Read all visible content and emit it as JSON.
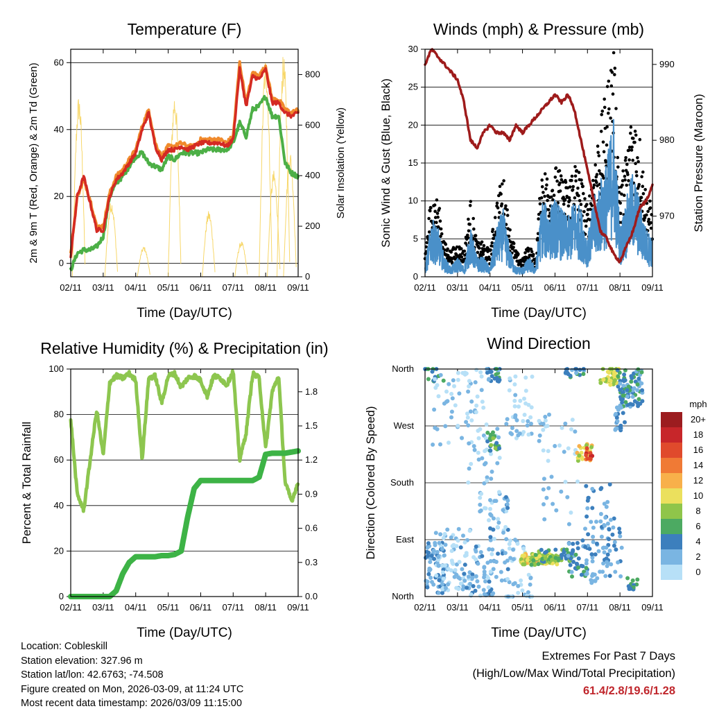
{
  "colors": {
    "temp_2m": "#d42a23",
    "temp_9m": "#f08a2c",
    "dewpoint": "#4caf46",
    "solar": "#f6d35a",
    "gust": "#000000",
    "wind": "#4a90c9",
    "pressure": "#9e1b1b",
    "rh": "#8dc64f",
    "precip": "#3db346"
  },
  "x_ticks": [
    "02/11",
    "03/11",
    "04/11",
    "05/11",
    "06/11",
    "07/11",
    "08/11",
    "09/11"
  ],
  "xlabel": "Time (Day/UTC)",
  "chart_data": [
    {
      "type": "line",
      "title": "Temperature (F)",
      "xlabel": "Time (Day/UTC)",
      "ylabel": "2m & 9m T (Red, Orange) & 2m Td (Green)",
      "y2label": "Solar Insolation (Yellow)",
      "ylim": [
        -4,
        64
      ],
      "y2lim": [
        0,
        900
      ],
      "y_ticks": [
        "0",
        "20",
        "40",
        "60"
      ],
      "y2_ticks": [
        "0",
        "200",
        "400",
        "600",
        "800"
      ],
      "x": [
        0,
        0.2,
        0.4,
        0.6,
        0.8,
        1.0,
        1.2,
        1.4,
        1.6,
        1.8,
        2.0,
        2.2,
        2.4,
        2.6,
        2.8,
        3.0,
        3.2,
        3.4,
        3.6,
        3.8,
        4.0,
        4.2,
        4.4,
        4.6,
        4.8,
        5.0,
        5.2,
        5.4,
        5.6,
        5.8,
        6.0,
        6.2,
        6.4,
        6.6,
        6.8,
        7.0
      ],
      "series": [
        {
          "name": "2m T",
          "values": [
            2,
            20,
            26,
            18,
            10,
            10,
            20,
            25,
            27,
            30,
            33,
            40,
            45,
            35,
            31,
            34,
            34,
            35,
            34,
            35,
            36,
            36,
            36,
            36,
            35,
            37,
            58,
            47,
            56,
            55,
            58,
            48,
            48,
            45,
            44,
            45
          ]
        },
        {
          "name": "9m T",
          "values": [
            3,
            20,
            25,
            19,
            11,
            11,
            21,
            26,
            28,
            31,
            34,
            41,
            46,
            36,
            32,
            35,
            35,
            36,
            35,
            35,
            37,
            37,
            37,
            37,
            36,
            38,
            60,
            48,
            57,
            56,
            59,
            49,
            49,
            46,
            45,
            46
          ]
        },
        {
          "name": "2m Td",
          "values": [
            -2,
            3,
            4,
            4,
            5,
            8,
            20,
            24,
            26,
            29,
            32,
            33,
            30,
            29,
            28,
            32,
            31,
            33,
            33,
            33,
            33,
            34,
            34,
            34,
            34,
            36,
            42,
            38,
            46,
            47,
            50,
            44,
            44,
            30,
            27,
            26
          ]
        },
        {
          "name": "Solar",
          "axis": "right",
          "values": [
            0,
            720,
            0,
            0,
            0,
            0,
            0,
            0,
            0,
            0,
            0,
            0,
            730,
            0,
            0,
            0,
            120,
            0,
            0,
            260,
            0,
            0,
            0,
            0,
            0,
            0,
            870,
            0,
            0,
            0,
            0,
            880,
            0,
            0,
            0,
            0
          ]
        }
      ]
    },
    {
      "type": "line",
      "title": "Winds (mph) & Pressure (mb)",
      "xlabel": "Time (Day/UTC)",
      "ylabel": "Sonic Wind & Gust (Blue, Black)",
      "y2label": "Station Pressure (Maroon)",
      "ylim": [
        0,
        30
      ],
      "y2lim": [
        962,
        992
      ],
      "y_ticks": [
        "0",
        "5",
        "10",
        "15",
        "20",
        "25",
        "30"
      ],
      "y2_ticks": [
        "970",
        "980",
        "990"
      ],
      "x": [
        0,
        0.2,
        0.4,
        0.6,
        0.8,
        1.0,
        1.2,
        1.4,
        1.6,
        1.8,
        2.0,
        2.2,
        2.4,
        2.6,
        2.8,
        3.0,
        3.2,
        3.4,
        3.6,
        3.8,
        4.0,
        4.2,
        4.4,
        4.6,
        4.8,
        5.0,
        5.2,
        5.4,
        5.6,
        5.8,
        6.0,
        6.2,
        6.4,
        6.6,
        6.8,
        7.0
      ],
      "series": [
        {
          "name": "Gust",
          "values": [
            3,
            10,
            9,
            4,
            3,
            4,
            3,
            9,
            4,
            4,
            3,
            9,
            12,
            6,
            3,
            2,
            4,
            2,
            13,
            12,
            13,
            12,
            11,
            14,
            12,
            8,
            14,
            18,
            22,
            28,
            10,
            15,
            20,
            17,
            10,
            8
          ]
        },
        {
          "name": "Wind",
          "values": [
            1,
            6,
            5,
            2,
            1,
            2,
            1,
            5,
            2,
            2,
            1,
            5,
            7,
            3,
            1,
            1,
            2,
            1,
            8,
            7,
            8,
            7,
            6,
            8,
            7,
            4,
            8,
            10,
            12,
            17,
            5,
            8,
            11,
            8,
            5,
            4
          ]
        },
        {
          "name": "Pressure",
          "axis": "right",
          "values": [
            990,
            992,
            991,
            990,
            989,
            988,
            985,
            980,
            979,
            981,
            982,
            981,
            981,
            980,
            982,
            981,
            982,
            983,
            984,
            985,
            986,
            985,
            986,
            984,
            980,
            976,
            972,
            968,
            967,
            965,
            964,
            966,
            968,
            971,
            972,
            974
          ]
        }
      ]
    },
    {
      "type": "line",
      "title": "Relative Humidity (%) & Precipitation (in)",
      "xlabel": "Time (Day/UTC)",
      "ylabel": "Percent & Total Rainfall",
      "ylim": [
        0,
        100
      ],
      "y2lim": [
        0,
        2.0
      ],
      "y_ticks": [
        "0",
        "20",
        "40",
        "60",
        "80",
        "100"
      ],
      "y2_ticks": [
        "0.0",
        "0.3",
        "0.6",
        "0.9",
        "1.2",
        "1.5",
        "1.8"
      ],
      "x": [
        0,
        0.2,
        0.4,
        0.6,
        0.8,
        1.0,
        1.2,
        1.4,
        1.6,
        1.8,
        2.0,
        2.2,
        2.4,
        2.6,
        2.8,
        3.0,
        3.2,
        3.4,
        3.6,
        3.8,
        4.0,
        4.2,
        4.4,
        4.6,
        4.8,
        5.0,
        5.2,
        5.4,
        5.6,
        5.8,
        6.0,
        6.2,
        6.4,
        6.6,
        6.8,
        7.0
      ],
      "series": [
        {
          "name": "RH",
          "values": [
            78,
            45,
            38,
            60,
            82,
            62,
            94,
            97,
            96,
            98,
            95,
            60,
            96,
            97,
            85,
            97,
            98,
            92,
            96,
            97,
            95,
            88,
            97,
            96,
            93,
            99,
            60,
            72,
            98,
            96,
            65,
            90,
            97,
            50,
            42,
            50
          ]
        },
        {
          "name": "Precip",
          "axis": "right",
          "values": [
            0,
            0,
            0,
            0,
            0,
            0,
            0,
            0.05,
            0.2,
            0.3,
            0.35,
            0.35,
            0.35,
            0.35,
            0.36,
            0.36,
            0.37,
            0.4,
            0.7,
            0.95,
            1.02,
            1.02,
            1.02,
            1.02,
            1.02,
            1.02,
            1.02,
            1.02,
            1.02,
            1.05,
            1.25,
            1.26,
            1.26,
            1.26,
            1.27,
            1.28
          ]
        }
      ]
    },
    {
      "type": "scatter",
      "title": "Wind Direction",
      "xlabel": "Time (Day/UTC)",
      "ylabel": "Direction (Colored By Speed)",
      "y_ticks": [
        "North",
        "East",
        "South",
        "West",
        "North"
      ],
      "colorbar_title": "mph",
      "colorbar_labels": [
        "20+",
        "18",
        "16",
        "14",
        "12",
        "10",
        "8",
        "6",
        "4",
        "2",
        "0"
      ],
      "colorbar_colors": [
        "#9c1c1f",
        "#c7262a",
        "#e04a2c",
        "#f07a35",
        "#f8b04a",
        "#ebe05d",
        "#8fc54a",
        "#4caa62",
        "#3c7fbd",
        "#7ab5e2",
        "#b7e0f7"
      ]
    }
  ],
  "footer": {
    "location": "Location: Cobleskill",
    "elevation": "Station elevation: 327.96 m",
    "latlon": "Station lat/lon: 42.6763; -74.508",
    "created": "Figure created on Mon, 2026-03-09, at 11:24 UTC",
    "recent": "Most recent data timestamp: 2026/03/09 11:15:00"
  },
  "extremes": {
    "title": "Extremes For Past 7 Days",
    "subtitle": "(High/Low/Max Wind/Total Precipitation)",
    "values": "61.4/2.8/19.6/1.28"
  }
}
